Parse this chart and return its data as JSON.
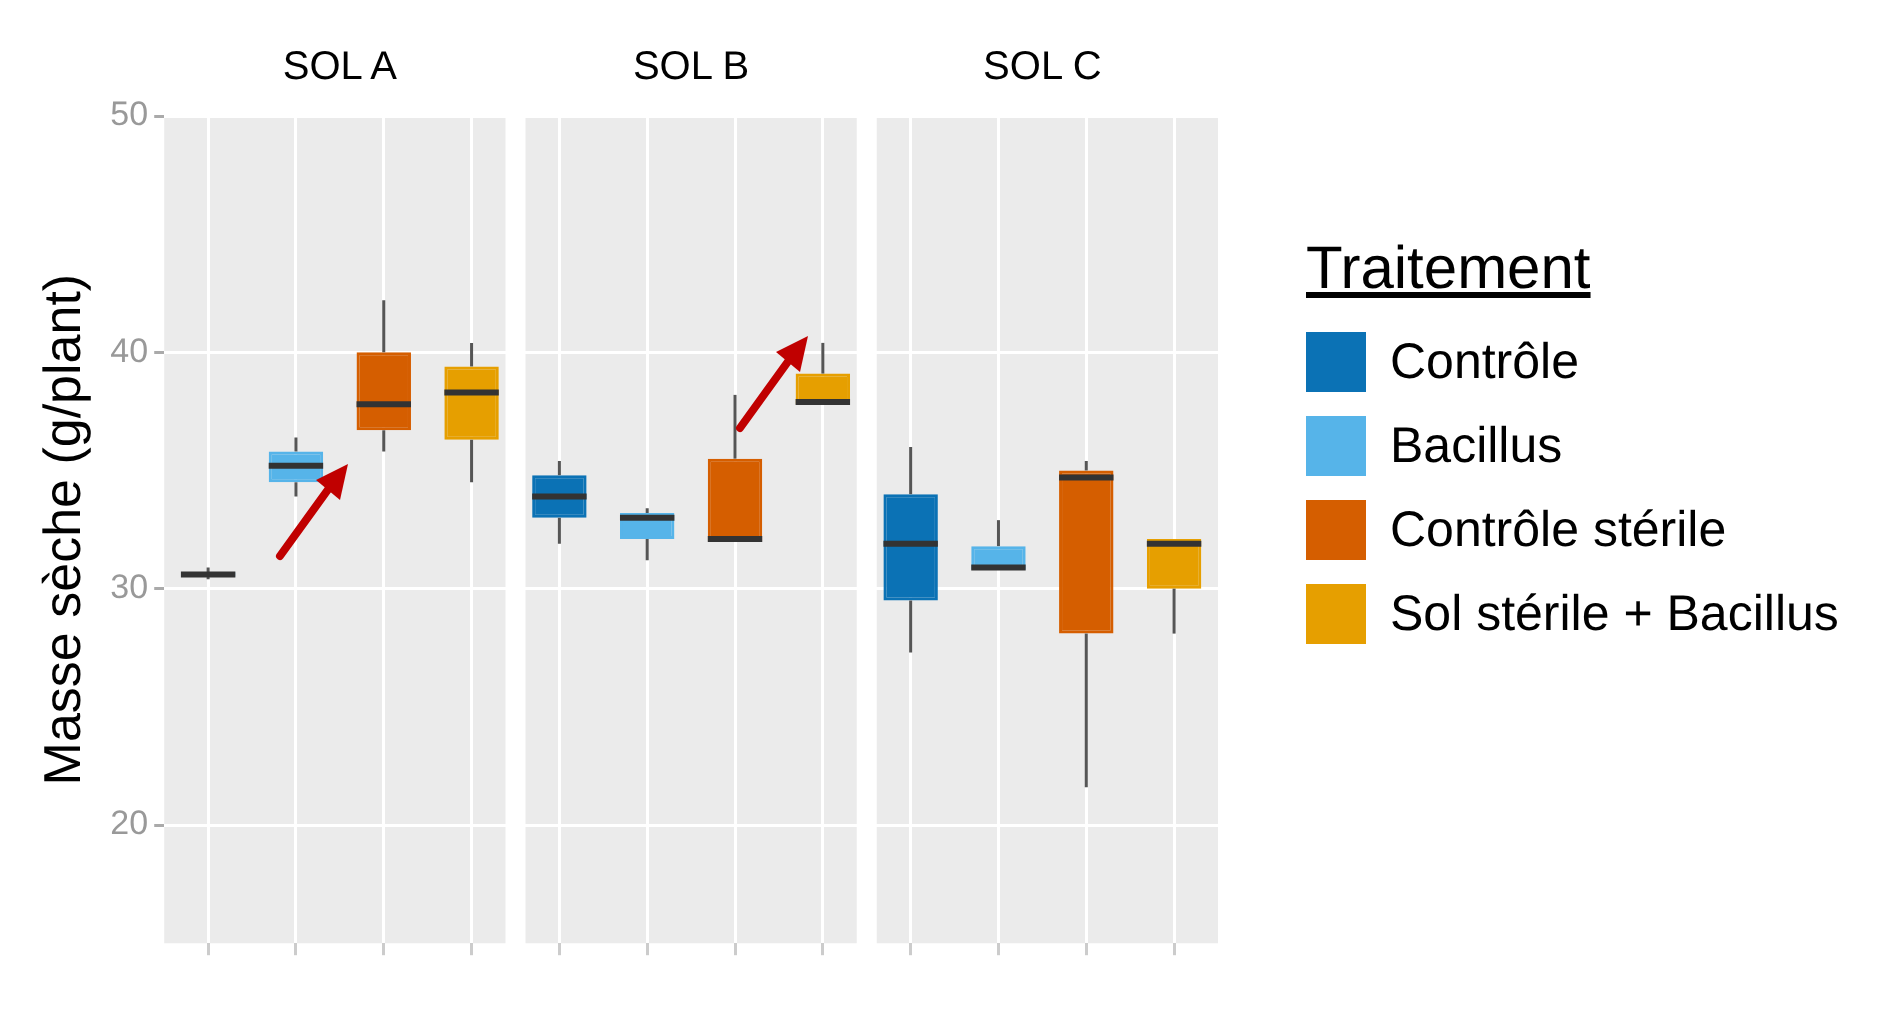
{
  "chart_data": {
    "type": "box",
    "ylabel": "Masse sèche (g/plant)",
    "legend": "right",
    "legend_title": "Traitement",
    "annotations": [
      "SOL A",
      "SOL B",
      "SOL C"
    ],
    "categories": [
      null,
      null,
      null,
      null,
      null,
      null,
      null,
      null,
      null,
      null,
      null,
      null
    ],
    "ylim": [
      15,
      50
    ],
    "yticks": [
      20,
      30,
      40,
      50
    ],
    "grid": true,
    "series": [
      {
        "name": "Contrôle",
        "color": "#0b72b5",
        "boxes": [
          {
            "low": 30.4,
            "q1": 30.5,
            "median": 30.6,
            "q3": 30.7,
            "high": 30.9
          },
          null,
          null,
          null,
          {
            "low": 31.9,
            "q1": 33.0,
            "median": 33.9,
            "q3": 34.8,
            "high": 35.4
          },
          null,
          null,
          null,
          {
            "low": 27.3,
            "q1": 29.5,
            "median": 31.9,
            "q3": 34.0,
            "high": 36.0
          },
          null,
          null,
          null
        ]
      },
      {
        "name": "Bacillus",
        "color": "#56b4e9",
        "boxes": [
          null,
          {
            "low": 33.9,
            "q1": 34.5,
            "median": 35.2,
            "q3": 35.8,
            "high": 36.4
          },
          null,
          null,
          null,
          {
            "low": 31.2,
            "q1": 32.1,
            "median": 33.0,
            "q3": 33.2,
            "high": 33.4
          },
          null,
          null,
          null,
          {
            "low": 30.8,
            "q1": 30.8,
            "median": 30.9,
            "q3": 31.8,
            "high": 32.9
          },
          null,
          null
        ]
      },
      {
        "name": "Contrôle stérile",
        "color": "#d55e00",
        "boxes": [
          null,
          null,
          {
            "low": 35.8,
            "q1": 36.7,
            "median": 37.8,
            "q3": 40.0,
            "high": 42.2
          },
          null,
          null,
          null,
          {
            "low": 32.0,
            "q1": 32.0,
            "median": 32.1,
            "q3": 35.5,
            "high": 38.2
          },
          null,
          null,
          null,
          {
            "low": 21.6,
            "q1": 28.1,
            "median": 34.7,
            "q3": 35.0,
            "high": 35.4
          },
          null
        ]
      },
      {
        "name": "Sol stérile + Bacillus",
        "color": "#e69f00",
        "boxes": [
          null,
          null,
          null,
          {
            "low": 34.5,
            "q1": 36.3,
            "median": 38.3,
            "q3": 39.4,
            "high": 40.4
          },
          null,
          null,
          null,
          {
            "low": 37.8,
            "q1": 37.8,
            "median": 37.9,
            "q3": 39.1,
            "high": 40.4
          },
          null,
          null,
          null,
          {
            "low": 28.1,
            "q1": 30.0,
            "median": 31.9,
            "q3": 32.1,
            "high": 32.1
          }
        ]
      }
    ]
  }
}
